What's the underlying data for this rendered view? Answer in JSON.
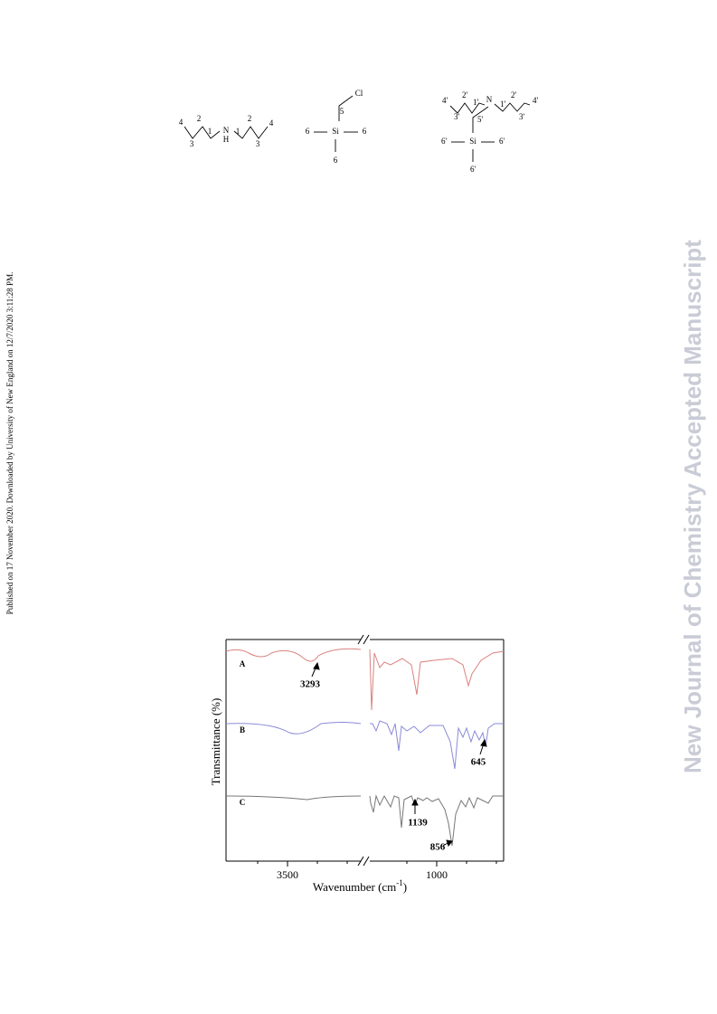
{
  "sidebar": {
    "published": "Published on 17 November 2020. Downloaded by University of New England on 12/7/2020 3:11:28 PM."
  },
  "watermark": "New Journal of Chemistry Accepted Manuscript",
  "structures": [
    {
      "labels": [
        "4",
        "2",
        "1",
        "N",
        "H",
        "1",
        "2",
        "4",
        "3",
        "3"
      ]
    },
    {
      "labels": [
        "Cl",
        "5",
        "Si",
        "6",
        "6",
        "6"
      ]
    },
    {
      "labels": [
        "4'",
        "2'",
        "1'",
        "N",
        "1'",
        "2'",
        "4'",
        "3'",
        "5'",
        "3'",
        "Si",
        "6'",
        "6'",
        "6'"
      ]
    }
  ],
  "figure": {
    "series_labels": [
      "A",
      "B",
      "C"
    ],
    "peak_labels": [
      "3293",
      "645",
      "1139",
      "856"
    ],
    "x_ticks": [
      "3500",
      "1000"
    ],
    "x_axis": "Wavenumber (cm",
    "x_axis_exp": "-1",
    "x_axis_end": ")",
    "y_axis": "Transmittance (%)"
  }
}
